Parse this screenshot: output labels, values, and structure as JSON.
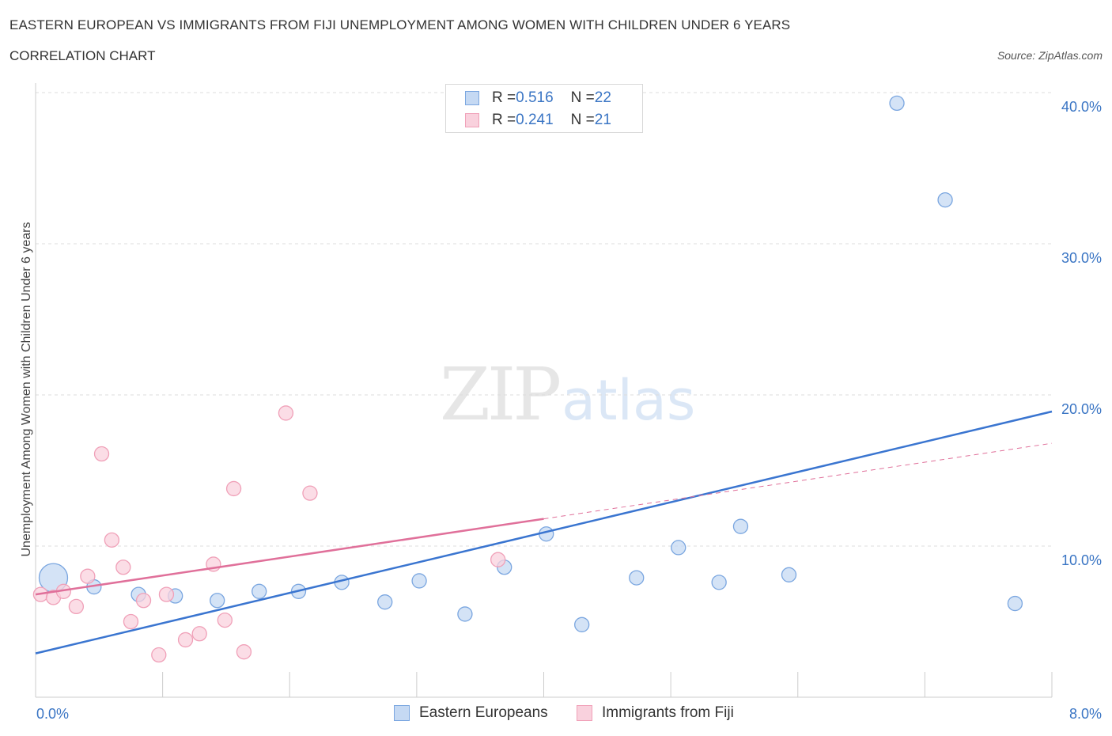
{
  "header": {
    "title": "EASTERN EUROPEAN VS IMMIGRANTS FROM FIJI UNEMPLOYMENT AMONG WOMEN WITH CHILDREN UNDER 6 YEARS",
    "subtitle": "CORRELATION CHART",
    "source": "Source: ZipAtlas.com"
  },
  "watermark": {
    "zip": "ZIP",
    "atlas": "atlas"
  },
  "stats_legend": {
    "rows": [
      {
        "r_label": "R = ",
        "r_value": "0.516",
        "n_label": "N = ",
        "n_value": "22"
      },
      {
        "r_label": "R = ",
        "r_value": "0.241",
        "n_label": "N = ",
        "n_value": "21"
      }
    ]
  },
  "chart_data": {
    "type": "scatter",
    "title": "EASTERN EUROPEAN VS IMMIGRANTS FROM FIJI UNEMPLOYMENT AMONG WOMEN WITH CHILDREN UNDER 6 YEARS",
    "subtitle": "CORRELATION CHART",
    "ylabel": "Unemployment Among Women with Children Under 6 years",
    "xlabel": "",
    "xlim": [
      0,
      8
    ],
    "ylim": [
      0,
      40
    ],
    "x_tick_labels": [
      "0.0%",
      "8.0%"
    ],
    "y_tick_labels": [
      "10.0%",
      "20.0%",
      "30.0%",
      "40.0%"
    ],
    "y_ticks": [
      10,
      20,
      30,
      40
    ],
    "grid": true,
    "legend_position": "bottom",
    "series": [
      {
        "name": "Eastern Europeans",
        "color": "#7aa6e0",
        "fill": "#c5d9f3",
        "line_color": "#3a75d0",
        "r": 0.516,
        "n": 22,
        "trend": {
          "x": [
            0,
            8
          ],
          "y": [
            2.9,
            18.9
          ]
        },
        "points": [
          {
            "x": 0.14,
            "y": 7.9,
            "big": true
          },
          {
            "x": 0.46,
            "y": 7.3
          },
          {
            "x": 0.81,
            "y": 6.8
          },
          {
            "x": 1.1,
            "y": 6.7
          },
          {
            "x": 1.43,
            "y": 6.4
          },
          {
            "x": 1.76,
            "y": 7.0
          },
          {
            "x": 2.07,
            "y": 7.0
          },
          {
            "x": 2.41,
            "y": 7.6
          },
          {
            "x": 2.75,
            "y": 6.3
          },
          {
            "x": 3.02,
            "y": 7.7
          },
          {
            "x": 3.38,
            "y": 5.5
          },
          {
            "x": 3.69,
            "y": 8.6
          },
          {
            "x": 4.02,
            "y": 10.8
          },
          {
            "x": 4.3,
            "y": 4.8
          },
          {
            "x": 4.73,
            "y": 7.9
          },
          {
            "x": 5.06,
            "y": 9.9
          },
          {
            "x": 5.38,
            "y": 7.6
          },
          {
            "x": 5.55,
            "y": 11.3
          },
          {
            "x": 5.93,
            "y": 8.1
          },
          {
            "x": 6.78,
            "y": 39.3
          },
          {
            "x": 7.16,
            "y": 32.9
          },
          {
            "x": 7.71,
            "y": 6.2
          }
        ]
      },
      {
        "name": "Immigrants from Fiji",
        "color": "#f0a0b8",
        "fill": "#f9d1dd",
        "line_color": "#e0709a",
        "r": 0.241,
        "n": 21,
        "trend": {
          "x": [
            0,
            4.0
          ],
          "y": [
            6.8,
            11.8
          ]
        },
        "trend_ext": {
          "x": [
            4.0,
            8
          ],
          "y": [
            11.8,
            16.8
          ]
        },
        "points": [
          {
            "x": 0.04,
            "y": 6.8
          },
          {
            "x": 0.14,
            "y": 6.6
          },
          {
            "x": 0.22,
            "y": 7.0
          },
          {
            "x": 0.32,
            "y": 6.0
          },
          {
            "x": 0.41,
            "y": 8.0
          },
          {
            "x": 0.52,
            "y": 16.1
          },
          {
            "x": 0.6,
            "y": 10.4
          },
          {
            "x": 0.69,
            "y": 8.6
          },
          {
            "x": 0.75,
            "y": 5.0
          },
          {
            "x": 0.85,
            "y": 6.4
          },
          {
            "x": 0.97,
            "y": 2.8
          },
          {
            "x": 1.03,
            "y": 6.8
          },
          {
            "x": 1.18,
            "y": 3.8
          },
          {
            "x": 1.29,
            "y": 4.2
          },
          {
            "x": 1.4,
            "y": 8.8
          },
          {
            "x": 1.49,
            "y": 5.1
          },
          {
            "x": 1.56,
            "y": 13.8
          },
          {
            "x": 1.64,
            "y": 3.0
          },
          {
            "x": 1.97,
            "y": 18.8
          },
          {
            "x": 2.16,
            "y": 13.5
          },
          {
            "x": 3.64,
            "y": 9.1
          }
        ]
      }
    ]
  }
}
